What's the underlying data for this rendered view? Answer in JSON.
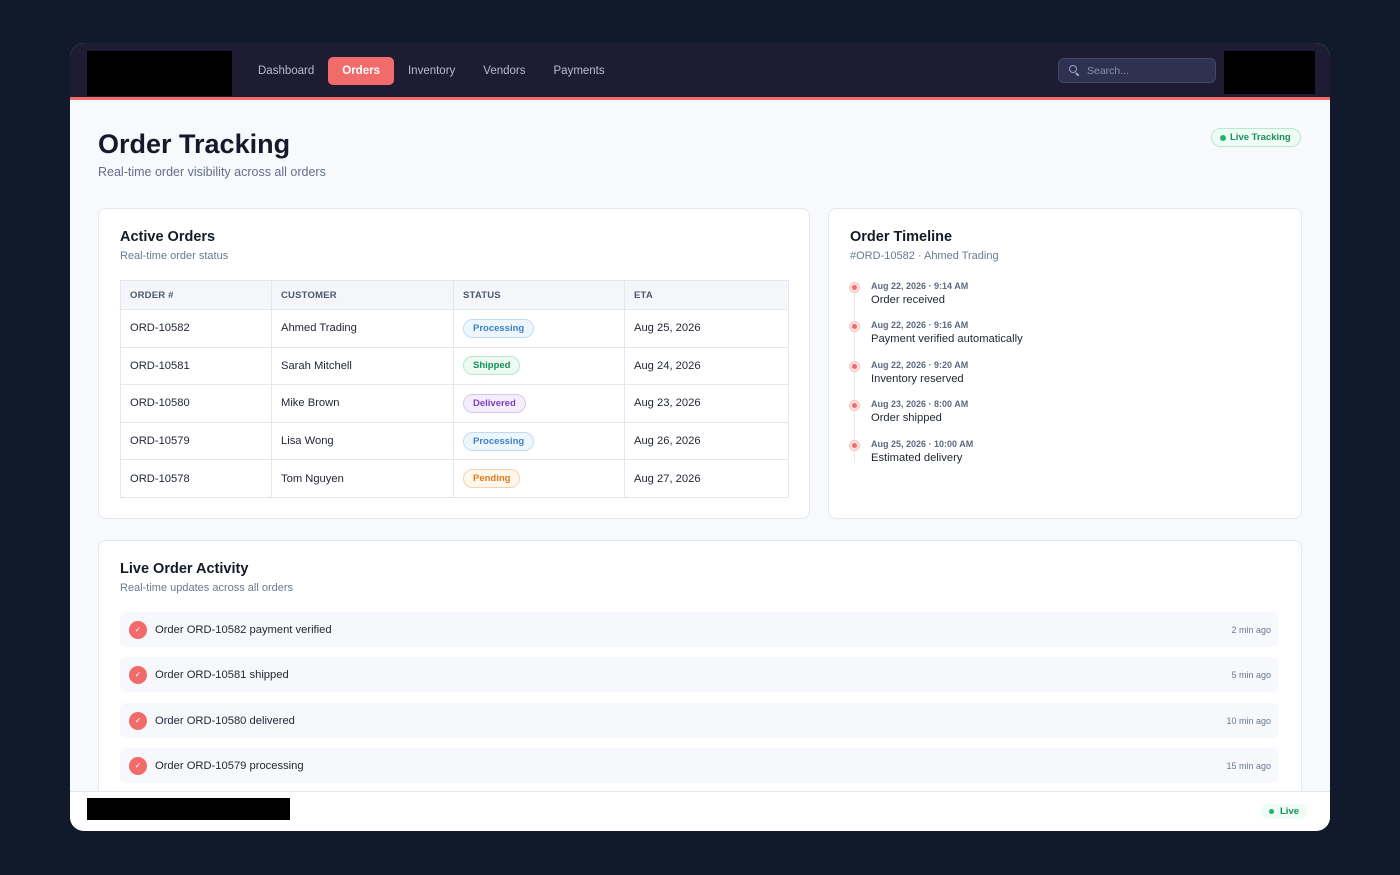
{
  "nav": {
    "items": [
      {
        "label": "Dashboard",
        "active": false
      },
      {
        "label": "Orders",
        "active": true
      },
      {
        "label": "Inventory",
        "active": false
      },
      {
        "label": "Vendors",
        "active": false
      },
      {
        "label": "Payments",
        "active": false
      }
    ],
    "search_placeholder": "Search..."
  },
  "header": {
    "title": "Order Tracking",
    "subtitle": "Real-time order visibility across all orders",
    "badge": "Live Tracking"
  },
  "active_orders": {
    "title": "Active Orders",
    "subtitle": "Real-time order status",
    "columns": [
      "ORDER #",
      "CUSTOMER",
      "STATUS",
      "ETA"
    ],
    "rows": [
      {
        "order": "ORD-10582",
        "customer": "Ahmed Trading",
        "status": "Processing",
        "eta": "Aug 25, 2026"
      },
      {
        "order": "ORD-10581",
        "customer": "Sarah Mitchell",
        "status": "Shipped",
        "eta": "Aug 24, 2026"
      },
      {
        "order": "ORD-10580",
        "customer": "Mike Brown",
        "status": "Delivered",
        "eta": "Aug 23, 2026"
      },
      {
        "order": "ORD-10579",
        "customer": "Lisa Wong",
        "status": "Processing",
        "eta": "Aug 26, 2026"
      },
      {
        "order": "ORD-10578",
        "customer": "Tom Nguyen",
        "status": "Pending",
        "eta": "Aug 27, 2026"
      }
    ]
  },
  "timeline": {
    "title": "Order Timeline",
    "subtitle": "#ORD-10582 · Ahmed Trading",
    "events": [
      {
        "time": "Aug 22, 2026 · 9:14 AM",
        "text": "Order received"
      },
      {
        "time": "Aug 22, 2026 · 9:16 AM",
        "text": "Payment verified automatically"
      },
      {
        "time": "Aug 22, 2026 · 9:20 AM",
        "text": "Inventory reserved"
      },
      {
        "time": "Aug 23, 2026 · 8:00 AM",
        "text": "Order shipped"
      },
      {
        "time": "Aug 25, 2026 · 10:00 AM",
        "text": "Estimated delivery"
      }
    ]
  },
  "activity": {
    "title": "Live Order Activity",
    "subtitle": "Real-time updates across all orders",
    "items": [
      {
        "text": "Order ORD-10582 payment verified",
        "time": "2 min ago"
      },
      {
        "text": "Order ORD-10581 shipped",
        "time": "5 min ago"
      },
      {
        "text": "Order ORD-10580 delivered",
        "time": "10 min ago"
      },
      {
        "text": "Order ORD-10579 processing",
        "time": "15 min ago"
      }
    ]
  },
  "footer": {
    "live_label": "Live"
  },
  "icons": {
    "check": "✓"
  },
  "colors": {
    "accent": "#f26b6b",
    "nav_bg": "#1e1c33",
    "page_bg": "#111a2b",
    "live_green": "#17915a"
  }
}
